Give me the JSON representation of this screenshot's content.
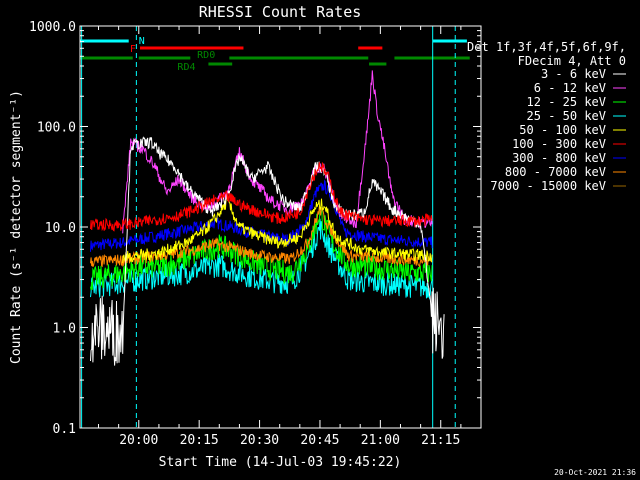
{
  "chart_data": {
    "type": "line",
    "title": "RHESSI Count Rates",
    "xlabel": "Start Time (14-Jul-03 19:45:22)",
    "ylabel": "Count Rate (s⁻¹ detector segment⁻¹)",
    "y_scale": "log",
    "ylim": [
      0.1,
      1000.0
    ],
    "xlim_minutes_of_day": [
      1185.4,
      1285.0
    ],
    "x_ticks": [
      {
        "label": "20:00",
        "minute": 1200
      },
      {
        "label": "20:15",
        "minute": 1215
      },
      {
        "label": "20:30",
        "minute": 1230
      },
      {
        "label": "20:45",
        "minute": 1245
      },
      {
        "label": "21:00",
        "minute": 1260
      },
      {
        "label": "21:15",
        "minute": 1275
      }
    ],
    "y_ticks": [
      {
        "label": "1000.0",
        "value": 1000
      },
      {
        "label": "100.0",
        "value": 100
      },
      {
        "label": "10.0",
        "value": 10
      },
      {
        "label": "1.0",
        "value": 1
      },
      {
        "label": "0.1",
        "value": 0.1
      }
    ],
    "legend_header": [
      "Det 1f,3f,4f,5f,6f,9f,",
      "FDecim 4, Att 0"
    ],
    "legend_position": "right",
    "grid": false,
    "series": [
      {
        "name": "3 - 6 keV",
        "color": "#ffffff",
        "points": [
          [
            1188,
            1.0
          ],
          [
            1196,
            0.9
          ],
          [
            1198,
            65
          ],
          [
            1203,
            70
          ],
          [
            1205,
            55
          ],
          [
            1209,
            40
          ],
          [
            1212,
            25
          ],
          [
            1218,
            14
          ],
          [
            1222,
            20
          ],
          [
            1225,
            50
          ],
          [
            1228,
            30
          ],
          [
            1232,
            40
          ],
          [
            1236,
            18
          ],
          [
            1240,
            15
          ],
          [
            1244,
            40
          ],
          [
            1246,
            38
          ],
          [
            1249,
            15
          ],
          [
            1253,
            13
          ],
          [
            1256,
            14
          ],
          [
            1258,
            28
          ],
          [
            1261,
            20
          ],
          [
            1263,
            15
          ],
          [
            1267,
            12
          ],
          [
            1270,
            11
          ],
          [
            1273,
            1.2
          ],
          [
            1276,
            0.9
          ]
        ]
      },
      {
        "name": "6 - 12 keV",
        "color": "#ff44ff",
        "points": [
          [
            1196,
            9
          ],
          [
            1198,
            70
          ],
          [
            1201,
            60
          ],
          [
            1204,
            40
          ],
          [
            1207,
            22
          ],
          [
            1210,
            30
          ],
          [
            1213,
            20
          ],
          [
            1217,
            15
          ],
          [
            1222,
            22
          ],
          [
            1225,
            55
          ],
          [
            1228,
            30
          ],
          [
            1233,
            18
          ],
          [
            1237,
            15
          ],
          [
            1241,
            18
          ],
          [
            1244,
            40
          ],
          [
            1246,
            38
          ],
          [
            1250,
            13
          ],
          [
            1254,
            11
          ],
          [
            1257,
            120
          ],
          [
            1258,
            350
          ],
          [
            1259,
            160
          ],
          [
            1261,
            60
          ],
          [
            1263,
            20
          ],
          [
            1266,
            12
          ],
          [
            1270,
            11
          ],
          [
            1273,
            11
          ]
        ]
      },
      {
        "name": "12 - 25 keV",
        "color": "#00ff00",
        "points": [
          [
            1188,
            3.0
          ],
          [
            1196,
            3.5
          ],
          [
            1200,
            4.0
          ],
          [
            1205,
            4.0
          ],
          [
            1210,
            4.5
          ],
          [
            1215,
            5.5
          ],
          [
            1220,
            6.5
          ],
          [
            1224,
            5.5
          ],
          [
            1228,
            4.5
          ],
          [
            1233,
            3.8
          ],
          [
            1238,
            3.5
          ],
          [
            1242,
            6
          ],
          [
            1245,
            14
          ],
          [
            1248,
            7
          ],
          [
            1252,
            4.2
          ],
          [
            1257,
            4.0
          ],
          [
            1262,
            3.8
          ],
          [
            1267,
            3.5
          ],
          [
            1273,
            3.5
          ]
        ]
      },
      {
        "name": "25 - 50 keV",
        "color": "#00ffff",
        "points": [
          [
            1188,
            2.5
          ],
          [
            1196,
            2.8
          ],
          [
            1200,
            3.0
          ],
          [
            1205,
            3.2
          ],
          [
            1210,
            3.4
          ],
          [
            1215,
            3.8
          ],
          [
            1220,
            4.2
          ],
          [
            1224,
            3.6
          ],
          [
            1228,
            3.2
          ],
          [
            1233,
            2.9
          ],
          [
            1238,
            2.8
          ],
          [
            1242,
            5
          ],
          [
            1245,
            10
          ],
          [
            1248,
            5.5
          ],
          [
            1252,
            3.0
          ],
          [
            1257,
            2.8
          ],
          [
            1262,
            2.7
          ],
          [
            1267,
            2.6
          ],
          [
            1273,
            2.5
          ]
        ]
      },
      {
        "name": "50 - 100 keV",
        "color": "#ffff00",
        "points": [
          [
            1196,
            5.0
          ],
          [
            1205,
            5.5
          ],
          [
            1212,
            7
          ],
          [
            1216,
            9
          ],
          [
            1219,
            12
          ],
          [
            1222,
            18
          ],
          [
            1225,
            10
          ],
          [
            1230,
            8
          ],
          [
            1235,
            7
          ],
          [
            1240,
            8
          ],
          [
            1244,
            16
          ],
          [
            1246,
            17
          ],
          [
            1249,
            8
          ],
          [
            1255,
            6
          ],
          [
            1262,
            5.5
          ],
          [
            1268,
            5.3
          ],
          [
            1273,
            5.2
          ]
        ]
      },
      {
        "name": "100 - 300 keV",
        "color": "#ff0000",
        "points": [
          [
            1188,
            10.5
          ],
          [
            1196,
            10.5
          ],
          [
            1200,
            11
          ],
          [
            1205,
            12
          ],
          [
            1210,
            13
          ],
          [
            1214,
            15
          ],
          [
            1218,
            18
          ],
          [
            1222,
            20
          ],
          [
            1226,
            16
          ],
          [
            1230,
            14
          ],
          [
            1235,
            12
          ],
          [
            1240,
            14
          ],
          [
            1243,
            30
          ],
          [
            1245,
            42
          ],
          [
            1247,
            32
          ],
          [
            1250,
            14
          ],
          [
            1255,
            12
          ],
          [
            1260,
            11.5
          ],
          [
            1265,
            11.5
          ],
          [
            1270,
            11.5
          ],
          [
            1273,
            12
          ]
        ]
      },
      {
        "name": "300 - 800 keV",
        "color": "#0000ff",
        "points": [
          [
            1188,
            6.5
          ],
          [
            1196,
            7.0
          ],
          [
            1200,
            7.5
          ],
          [
            1205,
            8.2
          ],
          [
            1210,
            9.0
          ],
          [
            1215,
            10
          ],
          [
            1219,
            11
          ],
          [
            1223,
            10
          ],
          [
            1227,
            9
          ],
          [
            1232,
            8
          ],
          [
            1237,
            7.5
          ],
          [
            1241,
            10
          ],
          [
            1244,
            22
          ],
          [
            1246,
            26
          ],
          [
            1248,
            20
          ],
          [
            1251,
            9
          ],
          [
            1256,
            8
          ],
          [
            1262,
            7.5
          ],
          [
            1268,
            7.2
          ],
          [
            1273,
            7.0
          ]
        ]
      },
      {
        "name": "800 - 7000 keV",
        "color": "#ff8800",
        "points": [
          [
            1188,
            4.5
          ],
          [
            1196,
            4.7
          ],
          [
            1202,
            5.0
          ],
          [
            1208,
            5.4
          ],
          [
            1214,
            6
          ],
          [
            1219,
            6.8
          ],
          [
            1223,
            6.2
          ],
          [
            1228,
            5.4
          ],
          [
            1233,
            5.0
          ],
          [
            1238,
            4.8
          ],
          [
            1242,
            7
          ],
          [
            1245,
            15
          ],
          [
            1248,
            9
          ],
          [
            1252,
            5.2
          ],
          [
            1257,
            5.0
          ],
          [
            1263,
            4.8
          ],
          [
            1268,
            4.7
          ],
          [
            1273,
            4.6
          ]
        ]
      },
      {
        "name": "7000 - 15000 keV",
        "color": "#996600",
        "points": []
      }
    ],
    "annotations": [
      {
        "label": "N",
        "color": "#00ffff"
      },
      {
        "label": "F",
        "color": "#ff0000"
      },
      {
        "label": "RD0",
        "color": "#008800"
      },
      {
        "label": "RD4",
        "color": "#008800"
      }
    ],
    "timestamp": "20-Oct-2021 21:36"
  }
}
